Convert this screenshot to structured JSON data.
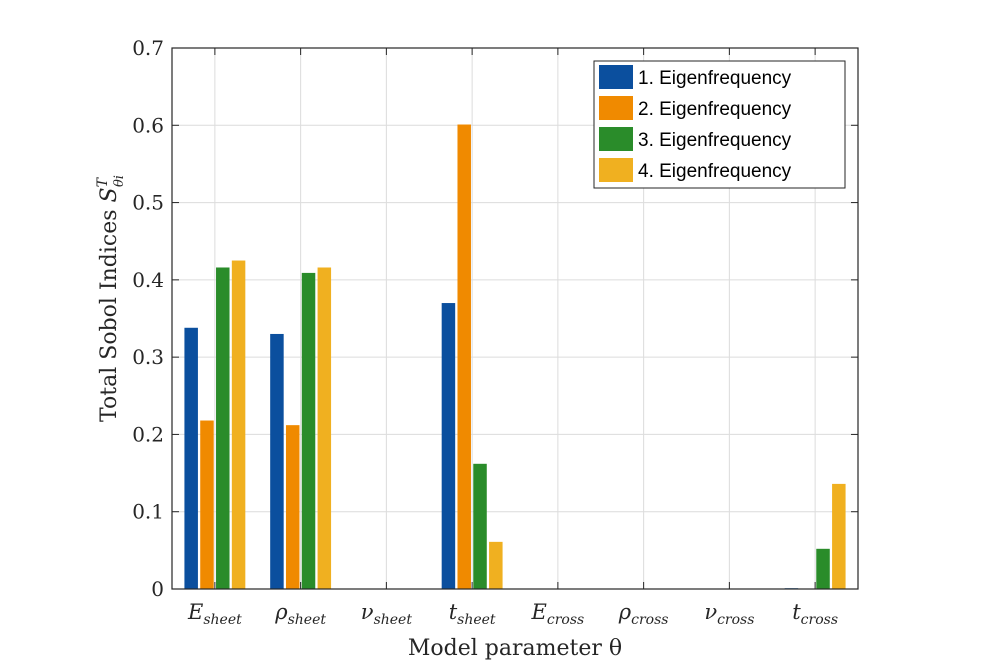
{
  "chart_data": {
    "type": "bar",
    "title": "",
    "xlabel": "Model parameter θ",
    "ylabel": "Total Sobol Indices",
    "ylabel_symbol": "S",
    "ylabel_superscript": "T",
    "ylabel_subscript": "θi",
    "ylim": [
      0,
      0.7
    ],
    "yticks": [
      0,
      0.1,
      0.2,
      0.3,
      0.4,
      0.5,
      0.6,
      0.7
    ],
    "ytick_labels": [
      "0",
      "0.1",
      "0.2",
      "0.3",
      "0.4",
      "0.5",
      "0.6",
      "0.7"
    ],
    "grid": true,
    "legend_position": "top-right",
    "categories": [
      {
        "base": "E",
        "sub": "sheet"
      },
      {
        "base": "ρ",
        "sub": "sheet"
      },
      {
        "base": "ν",
        "sub": "sheet"
      },
      {
        "base": "t",
        "sub": "sheet"
      },
      {
        "base": "E",
        "sub": "cross"
      },
      {
        "base": "ρ",
        "sub": "cross"
      },
      {
        "base": "ν",
        "sub": "cross"
      },
      {
        "base": "t",
        "sub": "cross"
      }
    ],
    "series": [
      {
        "name": "1. Eigenfrequency",
        "color": "#0b4f9e",
        "values": [
          0.338,
          0.33,
          0,
          0.37,
          0,
          0,
          0,
          0.001
        ]
      },
      {
        "name": "2. Eigenfrequency",
        "color": "#f08a00",
        "values": [
          0.218,
          0.212,
          0,
          0.601,
          0,
          0,
          0,
          0
        ]
      },
      {
        "name": "3. Eigenfrequency",
        "color": "#2a8c2a",
        "values": [
          0.416,
          0.409,
          0,
          0.162,
          0,
          0,
          0,
          0.052
        ]
      },
      {
        "name": "4. Eigenfrequency",
        "color": "#f0b020",
        "values": [
          0.425,
          0.416,
          0,
          0.061,
          0,
          0,
          0,
          0.136
        ]
      }
    ]
  }
}
